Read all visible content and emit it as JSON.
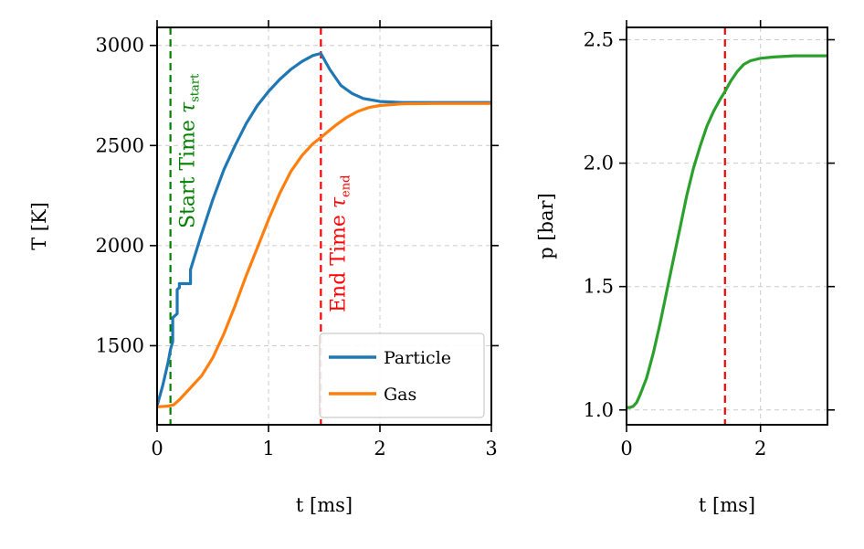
{
  "chart_data": [
    {
      "type": "line",
      "xlabel": "t [ms]",
      "ylabel": "T [K]",
      "xlim": [
        0,
        3
      ],
      "ylim": [
        1105,
        3090
      ],
      "x_ticks": [
        0,
        1,
        2,
        3
      ],
      "y_ticks": [
        1500,
        2000,
        2500,
        3000
      ],
      "x_tick_labels": [
        "0",
        "1",
        "2",
        "3"
      ],
      "y_tick_labels": [
        "1500",
        "2000",
        "2500",
        "3000"
      ],
      "grid": true,
      "legend_position": "bottom-right",
      "series": [
        {
          "name": "Particle",
          "color": "#1f77b4",
          "x": [
            0,
            0.05,
            0.1,
            0.12,
            0.14,
            0.14,
            0.18,
            0.18,
            0.2,
            0.2,
            0.3,
            0.3,
            0.4,
            0.5,
            0.6,
            0.7,
            0.8,
            0.9,
            1.0,
            1.1,
            1.2,
            1.3,
            1.4,
            1.47,
            1.55,
            1.65,
            1.75,
            1.85,
            2.0,
            2.2,
            2.5,
            3.0
          ],
          "y": [
            1200,
            1300,
            1420,
            1480,
            1520,
            1640,
            1660,
            1780,
            1790,
            1810,
            1810,
            1880,
            2060,
            2230,
            2380,
            2500,
            2610,
            2700,
            2770,
            2830,
            2880,
            2920,
            2950,
            2960,
            2880,
            2800,
            2760,
            2735,
            2720,
            2715,
            2715,
            2715
          ]
        },
        {
          "name": "Gas",
          "color": "#ff7f0e",
          "x": [
            0,
            0.1,
            0.15,
            0.2,
            0.3,
            0.4,
            0.5,
            0.6,
            0.7,
            0.8,
            0.9,
            1.0,
            1.1,
            1.2,
            1.3,
            1.4,
            1.47,
            1.6,
            1.7,
            1.8,
            1.9,
            2.0,
            2.2,
            2.5,
            3.0
          ],
          "y": [
            1195,
            1198,
            1205,
            1230,
            1290,
            1350,
            1440,
            1560,
            1700,
            1850,
            1990,
            2130,
            2260,
            2370,
            2450,
            2510,
            2540,
            2600,
            2640,
            2670,
            2690,
            2700,
            2708,
            2710,
            2710
          ]
        }
      ],
      "annotations": [
        {
          "text": "Start Time",
          "subscript_base": "τ",
          "subscript": "start",
          "color": "#008000",
          "x": 0.12
        },
        {
          "text": "End Time",
          "subscript_base": "τ",
          "subscript": "end",
          "color": "#ff0000",
          "x": 1.47
        }
      ]
    },
    {
      "type": "line",
      "xlabel": "t [ms]",
      "ylabel": "p [bar]",
      "xlim": [
        0,
        3
      ],
      "ylim": [
        0.94,
        2.55
      ],
      "x_ticks": [
        0,
        2
      ],
      "y_ticks": [
        1.0,
        1.5,
        2.0,
        2.5
      ],
      "x_tick_labels": [
        "0",
        "2"
      ],
      "y_tick_labels": [
        "1.0",
        "1.5",
        "2.0",
        "2.5"
      ],
      "grid": true,
      "series": [
        {
          "color": "#2ca02c",
          "x": [
            0,
            0.05,
            0.1,
            0.15,
            0.2,
            0.3,
            0.4,
            0.5,
            0.6,
            0.7,
            0.8,
            0.9,
            1.0,
            1.1,
            1.2,
            1.3,
            1.4,
            1.47,
            1.55,
            1.65,
            1.75,
            1.85,
            2.0,
            2.2,
            2.5,
            3.0
          ],
          "y": [
            1.01,
            1.01,
            1.015,
            1.03,
            1.06,
            1.13,
            1.23,
            1.35,
            1.48,
            1.61,
            1.74,
            1.87,
            1.98,
            2.07,
            2.15,
            2.21,
            2.26,
            2.29,
            2.33,
            2.37,
            2.4,
            2.415,
            2.425,
            2.43,
            2.435,
            2.435
          ]
        }
      ],
      "vlines": [
        {
          "x": 1.47,
          "color": "#ff0000"
        }
      ]
    }
  ]
}
